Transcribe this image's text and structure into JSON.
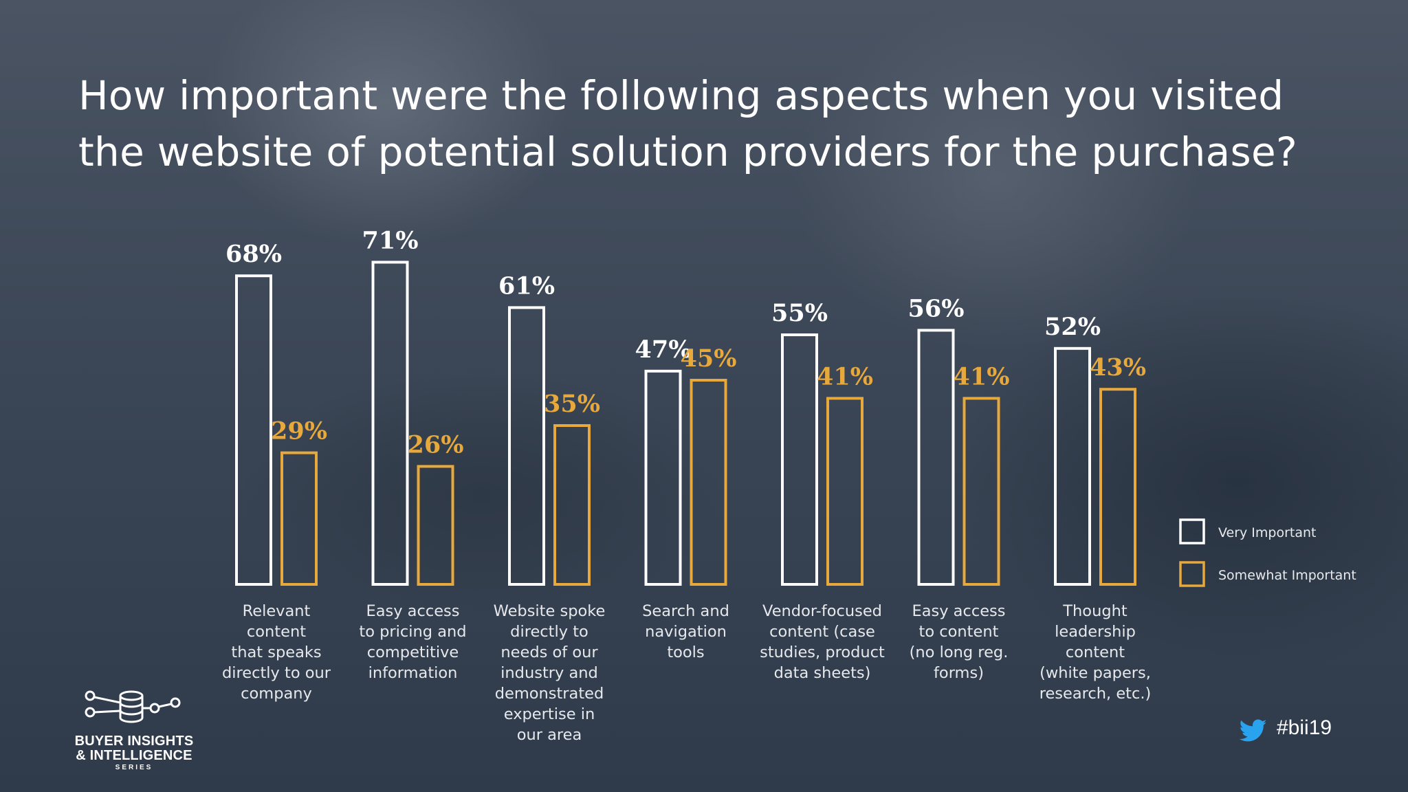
{
  "title": "How important were the following aspects when you visited the website of potential solution providers for the purchase?",
  "title_lines": [
    "How important were the following aspects when you visited",
    "the website of potential solution providers for the purchase?"
  ],
  "colors": {
    "very_important": "#ffffff",
    "somewhat_important": "#e7a83c",
    "background": "#3a4656"
  },
  "chart_data": {
    "type": "bar",
    "categories": [
      "Relevant content that speaks directly to our company",
      "Easy access to pricing and competitive information",
      "Website spoke directly to needs of our industry and demonstrated expertise in our area",
      "Search and navigation tools",
      "Vendor-focused content (case studies, product data sheets)",
      "Easy access to content (no long reg. forms)",
      "Thought leadership content (white papers, research, etc.)"
    ],
    "category_lines": [
      [
        "Relevant",
        "content",
        "that speaks",
        "directly to our",
        "company"
      ],
      [
        "Easy access",
        "to pricing and",
        "competitive",
        "information"
      ],
      [
        "Website spoke",
        "directly to",
        "needs of our",
        "industry and",
        "demonstrated",
        "expertise in",
        "our area"
      ],
      [
        "Search and",
        "navigation",
        "tools"
      ],
      [
        "Vendor-focused",
        "content (case",
        "studies, product",
        "data sheets)"
      ],
      [
        "Easy access",
        "to content",
        "(no long reg.",
        "forms)"
      ],
      [
        "Thought",
        "leadership",
        "content",
        "(white papers,",
        "research, etc.)"
      ]
    ],
    "series": [
      {
        "name": "Very Important",
        "values": [
          68,
          71,
          61,
          47,
          55,
          56,
          52
        ],
        "labels": [
          "68%",
          "71%",
          "61%",
          "47%",
          "55%",
          "56%",
          "52%"
        ]
      },
      {
        "name": "Somewhat Important",
        "values": [
          29,
          26,
          35,
          45,
          41,
          41,
          43
        ],
        "labels": [
          "29%",
          "26%",
          "35%",
          "45%",
          "41%",
          "41%",
          "43%"
        ]
      }
    ],
    "ylim": [
      0,
      100
    ],
    "grid": false,
    "legend": "right",
    "title": "How important were the following aspects when you visited the website of potential solution providers for the purchase?"
  },
  "legend": {
    "very_important": "Very Important",
    "somewhat_important": "Somewhat Important"
  },
  "branding": {
    "logo_line1": "BUYER INSIGHTS",
    "logo_line2": "& INTELLIGENCE",
    "logo_line3": "SERIES",
    "hashtag": "#bii19",
    "logo_icon": "database-network-icon",
    "twitter_icon": "twitter-bird-icon"
  }
}
